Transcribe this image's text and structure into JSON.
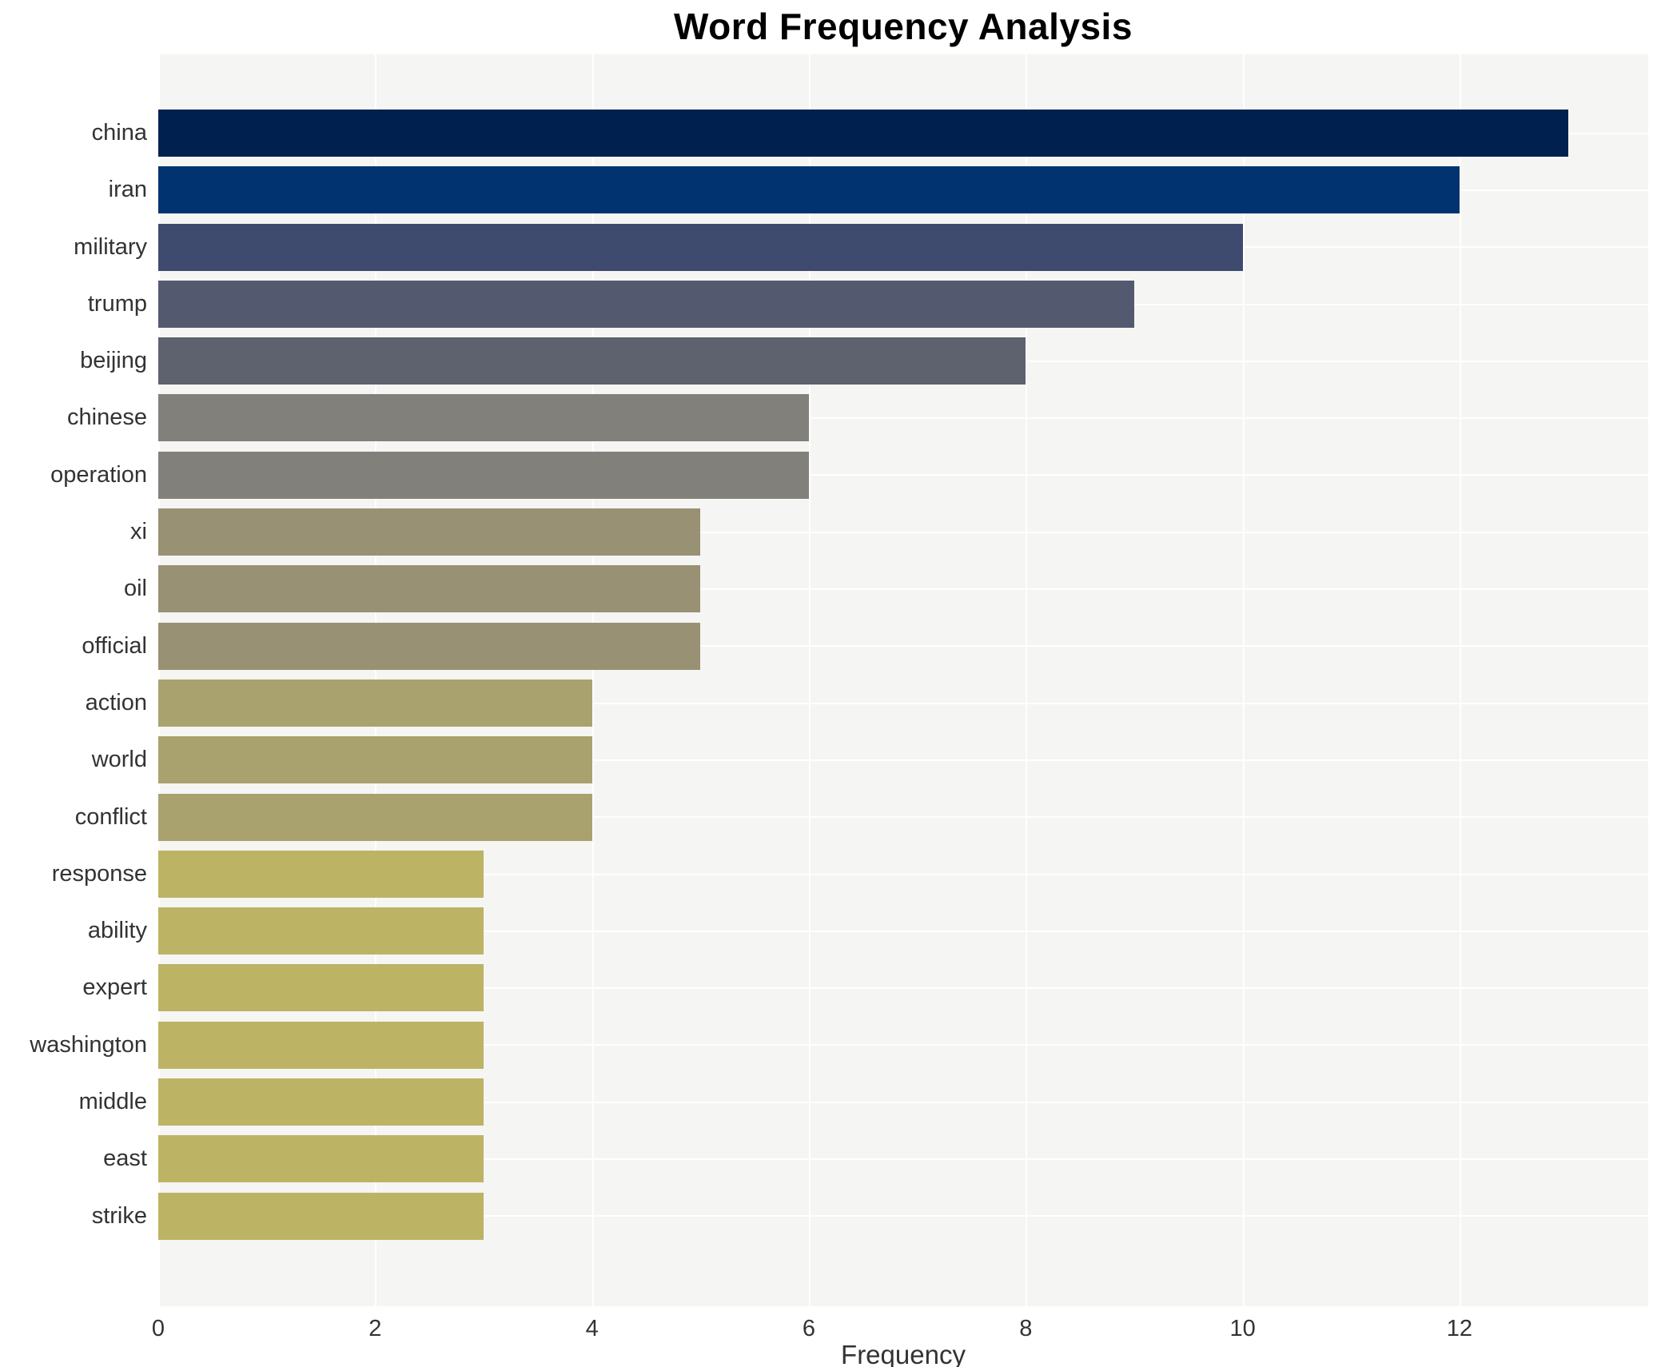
{
  "chart_data": {
    "type": "bar",
    "orientation": "horizontal",
    "title": "Word Frequency Analysis",
    "xlabel": "Frequency",
    "ylabel": "",
    "categories": [
      "china",
      "iran",
      "military",
      "trump",
      "beijing",
      "chinese",
      "operation",
      "xi",
      "oil",
      "official",
      "action",
      "world",
      "conflict",
      "response",
      "ability",
      "expert",
      "washington",
      "middle",
      "east",
      "strike"
    ],
    "values": [
      13,
      12,
      10,
      9,
      8,
      6,
      6,
      5,
      5,
      5,
      4,
      4,
      4,
      3,
      3,
      3,
      3,
      3,
      3,
      3
    ],
    "bar_colors": [
      "#002150",
      "#003370",
      "#3f4b6e",
      "#53596e",
      "#5e616e",
      "#82807a",
      "#82807a",
      "#999174",
      "#999174",
      "#999174",
      "#aaa26e",
      "#aaa26e",
      "#aaa26e",
      "#bdb365",
      "#bdb365",
      "#bdb365",
      "#bdb365",
      "#bdb365",
      "#bdb365",
      "#bdb365"
    ],
    "xlim": [
      0,
      13.74
    ],
    "xticks": [
      0,
      2,
      4,
      6,
      8,
      10,
      12
    ],
    "grid": true,
    "legend": false,
    "plot_background": "#f5f5f3",
    "gridline_color": "#ffffff",
    "colormap": "cividis"
  }
}
